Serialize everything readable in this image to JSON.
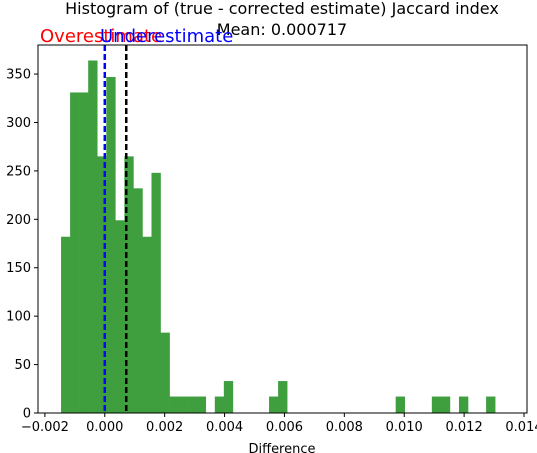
{
  "chart_data": {
    "type": "bar",
    "title": "Histogram of (true - corrected estimate) Jaccard index",
    "subtitle": "Mean: 0.000717",
    "xlabel": "Difference",
    "ylabel": "",
    "xlim": [
      -0.00223,
      0.0141
    ],
    "ylim": [
      0,
      380
    ],
    "x_ticks": [
      -0.002,
      0.0,
      0.002,
      0.004,
      0.006,
      0.008,
      0.01,
      0.012,
      0.014
    ],
    "x_tick_labels": [
      "−0.002",
      "0.000",
      "0.002",
      "0.004",
      "0.006",
      "0.008",
      "0.010",
      "0.012",
      "0.014"
    ],
    "y_ticks": [
      0,
      50,
      100,
      150,
      200,
      250,
      300,
      350
    ],
    "y_tick_labels": [
      "0",
      "50",
      "100",
      "150",
      "200",
      "250",
      "300",
      "350"
    ],
    "grid": false,
    "bar_color": "#3f9f3f",
    "bin_start": -0.00146,
    "bin_width": 0.000302,
    "counts": [
      182,
      331,
      331,
      364,
      265,
      347,
      199,
      265,
      232,
      182,
      248,
      83,
      17,
      17,
      17,
      17,
      0,
      17,
      33,
      0,
      0,
      0,
      0,
      17,
      33,
      0,
      0,
      0,
      0,
      0,
      0,
      0,
      0,
      0,
      0,
      0,
      0,
      17,
      0,
      0,
      0,
      17,
      17,
      0,
      17,
      0,
      0,
      17
    ],
    "reference_lines": [
      {
        "x": 0.0,
        "color": "#0000ff",
        "style": "dashed"
      },
      {
        "x": 0.000717,
        "color": "#000000",
        "style": "dashed"
      }
    ],
    "annotations": [
      {
        "text": "Overestimate",
        "color": "#ff0000"
      },
      {
        "text": "Underestimate",
        "color": "#0000ff"
      }
    ]
  }
}
